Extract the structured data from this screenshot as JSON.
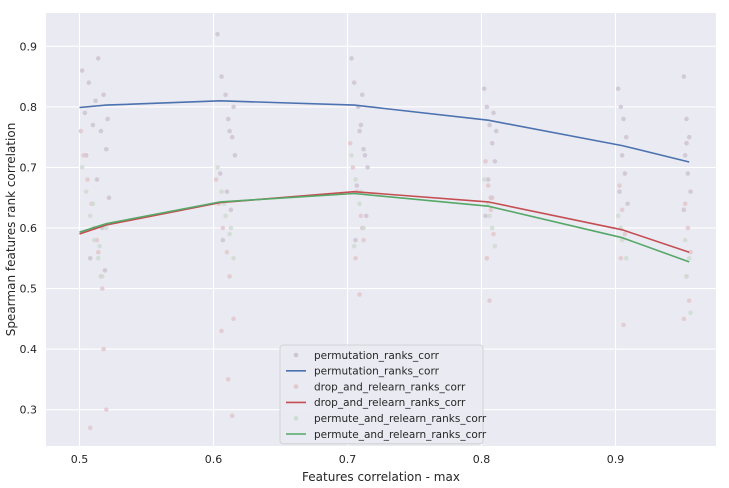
{
  "chart_data": {
    "type": "line",
    "xlabel": "Features correlation - max",
    "ylabel": "Spearman features rank correlation",
    "xlim": [
      0.475,
      0.975
    ],
    "ylim": [
      0.24,
      0.955
    ],
    "xticks": [
      0.5,
      0.6,
      0.7,
      0.8,
      0.9
    ],
    "yticks": [
      0.3,
      0.4,
      0.5,
      0.6,
      0.7,
      0.8,
      0.9
    ],
    "grid": true,
    "legend_position": "bottom-center",
    "background": "#eaeaf2",
    "series": [
      {
        "name": "permutation_ranks_corr",
        "kind": "scatter",
        "color": "#cfc4d3",
        "x": [
          0.502,
          0.504,
          0.507,
          0.51,
          0.512,
          0.514,
          0.516,
          0.518,
          0.52,
          0.522,
          0.505,
          0.508,
          0.513,
          0.517,
          0.519,
          0.521,
          0.603,
          0.606,
          0.609,
          0.611,
          0.614,
          0.616,
          0.605,
          0.61,
          0.613,
          0.615,
          0.607,
          0.612,
          0.703,
          0.705,
          0.708,
          0.71,
          0.712,
          0.715,
          0.707,
          0.711,
          0.714,
          0.706,
          0.709,
          0.713,
          0.802,
          0.804,
          0.806,
          0.808,
          0.81,
          0.805,
          0.807,
          0.809,
          0.803,
          0.811,
          0.902,
          0.904,
          0.906,
          0.908,
          0.905,
          0.907,
          0.903,
          0.909,
          0.951,
          0.953,
          0.955,
          0.952,
          0.954,
          0.956,
          0.951,
          0.953
        ],
        "y": [
          0.86,
          0.79,
          0.84,
          0.77,
          0.81,
          0.88,
          0.76,
          0.82,
          0.73,
          0.65,
          0.72,
          0.55,
          0.68,
          0.6,
          0.53,
          0.78,
          0.92,
          0.85,
          0.82,
          0.78,
          0.75,
          0.72,
          0.69,
          0.66,
          0.63,
          0.8,
          0.58,
          0.76,
          0.88,
          0.84,
          0.8,
          0.77,
          0.73,
          0.7,
          0.67,
          0.82,
          0.62,
          0.58,
          0.76,
          0.72,
          0.83,
          0.8,
          0.77,
          0.74,
          0.71,
          0.68,
          0.65,
          0.79,
          0.62,
          0.76,
          0.83,
          0.8,
          0.78,
          0.75,
          0.72,
          0.69,
          0.66,
          0.64,
          0.85,
          0.78,
          0.75,
          0.72,
          0.69,
          0.66,
          0.63,
          0.74
        ]
      },
      {
        "name": "permutation_ranks_corr",
        "kind": "line",
        "color": "#4c72b0",
        "x": [
          0.5,
          0.52,
          0.605,
          0.705,
          0.805,
          0.905,
          0.955
        ],
        "y": [
          0.799,
          0.803,
          0.81,
          0.803,
          0.778,
          0.736,
          0.709
        ]
      },
      {
        "name": "drop_and_relearn_ranks_corr",
        "kind": "scatter",
        "color": "#e2c8cc",
        "x": [
          0.501,
          0.503,
          0.506,
          0.509,
          0.511,
          0.514,
          0.516,
          0.518,
          0.52,
          0.508,
          0.513,
          0.517,
          0.602,
          0.604,
          0.607,
          0.61,
          0.612,
          0.615,
          0.606,
          0.611,
          0.614,
          0.702,
          0.704,
          0.707,
          0.71,
          0.712,
          0.706,
          0.709,
          0.711,
          0.803,
          0.805,
          0.807,
          0.809,
          0.804,
          0.806,
          0.808,
          0.903,
          0.905,
          0.907,
          0.904,
          0.906,
          0.952,
          0.954,
          0.956,
          0.953,
          0.955,
          0.951
        ],
        "y": [
          0.76,
          0.72,
          0.68,
          0.64,
          0.6,
          0.56,
          0.52,
          0.4,
          0.3,
          0.27,
          0.58,
          0.5,
          0.68,
          0.64,
          0.6,
          0.56,
          0.52,
          0.45,
          0.43,
          0.35,
          0.29,
          0.74,
          0.7,
          0.66,
          0.62,
          0.58,
          0.55,
          0.49,
          0.6,
          0.71,
          0.67,
          0.63,
          0.59,
          0.55,
          0.48,
          0.65,
          0.67,
          0.63,
          0.59,
          0.55,
          0.44,
          0.64,
          0.6,
          0.56,
          0.52,
          0.48,
          0.45
        ]
      },
      {
        "name": "drop_and_relearn_ranks_corr",
        "kind": "line",
        "color": "#c44e52",
        "x": [
          0.5,
          0.52,
          0.605,
          0.705,
          0.805,
          0.905,
          0.955
        ],
        "y": [
          0.59,
          0.605,
          0.642,
          0.66,
          0.643,
          0.597,
          0.56
        ]
      },
      {
        "name": "permute_and_relearn_ranks_corr",
        "kind": "scatter",
        "color": "#cfdcd2",
        "x": [
          0.502,
          0.505,
          0.508,
          0.511,
          0.514,
          0.517,
          0.52,
          0.51,
          0.515,
          0.603,
          0.606,
          0.609,
          0.612,
          0.615,
          0.608,
          0.613,
          0.703,
          0.706,
          0.709,
          0.712,
          0.705,
          0.71,
          0.802,
          0.805,
          0.808,
          0.81,
          0.806,
          0.902,
          0.905,
          0.908,
          0.904,
          0.952,
          0.955,
          0.953,
          0.956
        ],
        "y": [
          0.7,
          0.66,
          0.62,
          0.58,
          0.55,
          0.52,
          0.6,
          0.64,
          0.57,
          0.7,
          0.66,
          0.62,
          0.59,
          0.55,
          0.64,
          0.6,
          0.72,
          0.68,
          0.64,
          0.6,
          0.57,
          0.66,
          0.68,
          0.64,
          0.6,
          0.57,
          0.62,
          0.62,
          0.58,
          0.55,
          0.6,
          0.58,
          0.55,
          0.52,
          0.46
        ]
      },
      {
        "name": "permute_and_relearn_ranks_corr",
        "kind": "line",
        "color": "#55a868",
        "x": [
          0.5,
          0.52,
          0.605,
          0.705,
          0.805,
          0.905,
          0.955
        ],
        "y": [
          0.593,
          0.607,
          0.643,
          0.657,
          0.636,
          0.584,
          0.544
        ]
      }
    ]
  }
}
